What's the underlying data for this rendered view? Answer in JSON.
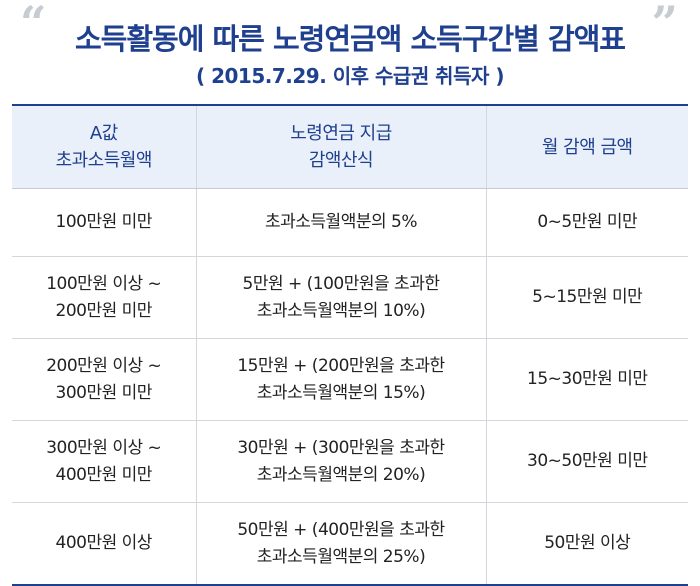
{
  "title": "소득활동에 따른 노령연금액 소득구간별 감액표",
  "subtitle": "( 2015.7.29. 이후 수급권 취득자 )",
  "columns": [
    {
      "line1": "A값",
      "line2": "초과소득월액"
    },
    {
      "line1": "노령연금 지급",
      "line2": "감액산식"
    },
    {
      "line1": "월 감액 금액",
      "line2": ""
    }
  ],
  "rows": [
    {
      "range1": "100만원 미만",
      "range2": "",
      "formula1": "초과소득월액분의 5%",
      "formula2": "",
      "amount": "0~5만원 미만"
    },
    {
      "range1": "100만원 이상 ~",
      "range2": "200만원 미만",
      "formula1": "5만원 + (100만원을 초과한",
      "formula2": "초과소득월액분의 10%)",
      "amount": "5~15만원 미만"
    },
    {
      "range1": "200만원 이상 ~",
      "range2": "300만원 미만",
      "formula1": "15만원 + (200만원을 초과한",
      "formula2": "초과소득월액분의 15%)",
      "amount": "15~30만원 미만"
    },
    {
      "range1": "300만원 이상 ~",
      "range2": "400만원 미만",
      "formula1": "30만원 + (300만원을 초과한",
      "formula2": "초과소득월액분의 20%)",
      "amount": "30~50만원 미만"
    },
    {
      "range1": "400만원 이상",
      "range2": "",
      "formula1": "50만원 + (400만원을 초과한",
      "formula2": "초과소득월액분의 25%)",
      "amount": "50만원 이상"
    }
  ]
}
